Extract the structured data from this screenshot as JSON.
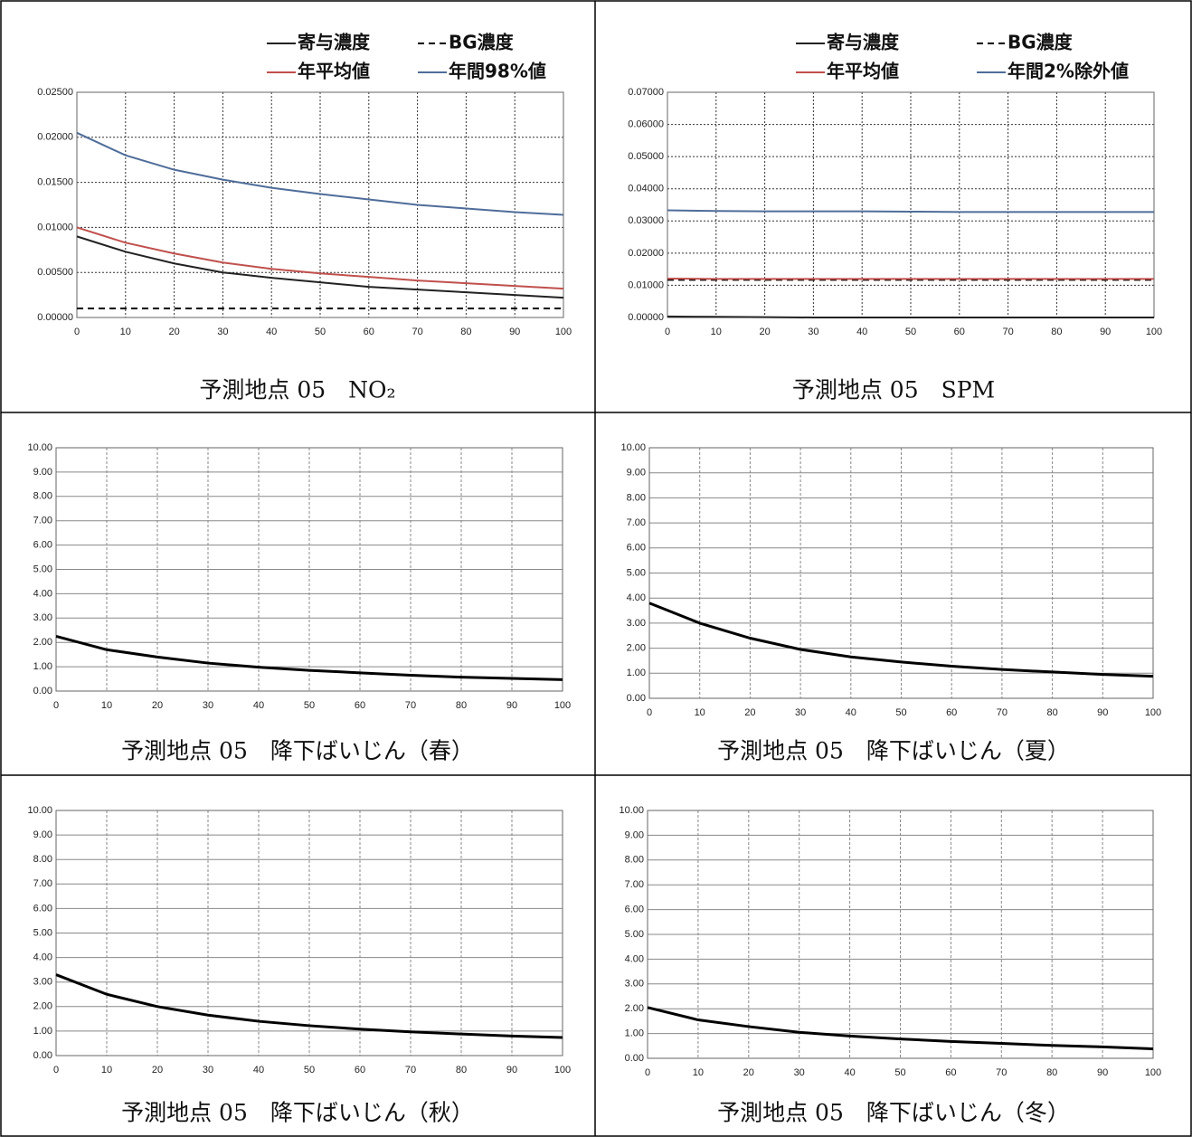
{
  "chart_data": [
    {
      "type": "line",
      "title": "予測地点 05　NO₂",
      "x": [
        0,
        10,
        20,
        30,
        40,
        50,
        60,
        70,
        80,
        90,
        100
      ],
      "xlim": [
        0,
        100
      ],
      "xticks": [
        0,
        10,
        20,
        30,
        40,
        50,
        60,
        70,
        80,
        90,
        100
      ],
      "ylim": [
        0,
        0.025
      ],
      "yticks": [
        {
          "value": 0,
          "label": "0.00000"
        },
        {
          "value": 0.005,
          "label": "0.00500"
        },
        {
          "value": 0.01,
          "label": "0.01000"
        },
        {
          "value": 0.015,
          "label": "0.01500"
        },
        {
          "value": 0.02,
          "label": "0.02000"
        },
        {
          "value": 0.025,
          "label": "0.02500"
        }
      ],
      "grid": true,
      "series": [
        {
          "name": "寄与濃度",
          "color": "#222222",
          "values": [
            0.009,
            0.0073,
            0.006,
            0.005,
            0.0044,
            0.0039,
            0.0034,
            0.0031,
            0.0028,
            0.0025,
            0.0022
          ]
        },
        {
          "name": "BG濃度",
          "color": "#000000",
          "dashed": true,
          "values": [
            0.001,
            0.001,
            0.001,
            0.001,
            0.001,
            0.001,
            0.001,
            0.001,
            0.001,
            0.001,
            0.001
          ]
        },
        {
          "name": "年平均値",
          "color": "#c0504d",
          "values": [
            0.01,
            0.0083,
            0.0071,
            0.0061,
            0.0054,
            0.0049,
            0.0045,
            0.0041,
            0.0038,
            0.0035,
            0.0032
          ]
        },
        {
          "name": "年間98%値",
          "color": "#4f6d9a",
          "values": [
            0.0205,
            0.018,
            0.0164,
            0.0153,
            0.0144,
            0.0137,
            0.0131,
            0.0125,
            0.0121,
            0.0117,
            0.0114
          ]
        }
      ]
    },
    {
      "type": "line",
      "title": "予測地点 05　SPM",
      "x": [
        0,
        10,
        20,
        30,
        40,
        50,
        60,
        70,
        80,
        90,
        100
      ],
      "xlim": [
        0,
        100
      ],
      "xticks": [
        0,
        10,
        20,
        30,
        40,
        50,
        60,
        70,
        80,
        90,
        100
      ],
      "ylim": [
        0,
        0.07
      ],
      "yticks": [
        {
          "value": 0,
          "label": "0.00000"
        },
        {
          "value": 0.01,
          "label": "0.01000"
        },
        {
          "value": 0.02,
          "label": "0.02000"
        },
        {
          "value": 0.03,
          "label": "0.03000"
        },
        {
          "value": 0.04,
          "label": "0.04000"
        },
        {
          "value": 0.05,
          "label": "0.05000"
        },
        {
          "value": 0.06,
          "label": "0.06000"
        },
        {
          "value": 0.07,
          "label": "0.07000"
        }
      ],
      "grid": true,
      "series": [
        {
          "name": "寄与濃度",
          "color": "#222222",
          "values": [
            0.0003,
            0.0002,
            0.0001,
            0,
            0,
            0,
            0,
            0,
            0,
            0,
            0
          ]
        },
        {
          "name": "BG濃度",
          "color": "#000000",
          "dashed": true,
          "values": [
            0.0117,
            0.0117,
            0.0117,
            0.0117,
            0.0117,
            0.0117,
            0.0117,
            0.0117,
            0.0117,
            0.0117,
            0.0117
          ]
        },
        {
          "name": "年平均値",
          "color": "#c0504d",
          "values": [
            0.0121,
            0.012,
            0.012,
            0.012,
            0.012,
            0.012,
            0.012,
            0.012,
            0.012,
            0.012,
            0.012
          ]
        },
        {
          "name": "年間2%除外値",
          "color": "#4f6d9a",
          "values": [
            0.0333,
            0.0331,
            0.033,
            0.033,
            0.033,
            0.0329,
            0.0328,
            0.0328,
            0.0328,
            0.0328,
            0.0328
          ]
        }
      ]
    },
    {
      "type": "line",
      "title": "予測地点 05　降下ばいじん（春）",
      "x": [
        0,
        10,
        20,
        30,
        40,
        50,
        60,
        70,
        80,
        90,
        100
      ],
      "xlim": [
        0,
        100
      ],
      "xticks": [
        0,
        10,
        20,
        30,
        40,
        50,
        60,
        70,
        80,
        90,
        100
      ],
      "ylim": [
        0,
        10
      ],
      "yticks": [
        {
          "value": 0,
          "label": "0.00"
        },
        {
          "value": 1,
          "label": "1.00"
        },
        {
          "value": 2,
          "label": "2.00"
        },
        {
          "value": 3,
          "label": "3.00"
        },
        {
          "value": 4,
          "label": "4.00"
        },
        {
          "value": 5,
          "label": "5.00"
        },
        {
          "value": 6,
          "label": "6.00"
        },
        {
          "value": 7,
          "label": "7.00"
        },
        {
          "value": 8,
          "label": "8.00"
        },
        {
          "value": 9,
          "label": "9.00"
        },
        {
          "value": 10,
          "label": "10.00"
        }
      ],
      "grid": true,
      "series": [
        {
          "color": "#000000",
          "values": [
            2.25,
            1.7,
            1.4,
            1.15,
            0.98,
            0.85,
            0.75,
            0.65,
            0.57,
            0.52,
            0.47
          ]
        }
      ]
    },
    {
      "type": "line",
      "title": "予測地点 05　降下ばいじん（夏）",
      "x": [
        0,
        10,
        20,
        30,
        40,
        50,
        60,
        70,
        80,
        90,
        100
      ],
      "xlim": [
        0,
        100
      ],
      "xticks": [
        0,
        10,
        20,
        30,
        40,
        50,
        60,
        70,
        80,
        90,
        100
      ],
      "ylim": [
        0,
        10
      ],
      "yticks": [
        {
          "value": 0,
          "label": "0.00"
        },
        {
          "value": 1,
          "label": "1.00"
        },
        {
          "value": 2,
          "label": "2.00"
        },
        {
          "value": 3,
          "label": "3.00"
        },
        {
          "value": 4,
          "label": "4.00"
        },
        {
          "value": 5,
          "label": "5.00"
        },
        {
          "value": 6,
          "label": "6.00"
        },
        {
          "value": 7,
          "label": "7.00"
        },
        {
          "value": 8,
          "label": "8.00"
        },
        {
          "value": 9,
          "label": "9.00"
        },
        {
          "value": 10,
          "label": "10.00"
        }
      ],
      "grid": true,
      "series": [
        {
          "color": "#000000",
          "values": [
            3.8,
            3.0,
            2.4,
            1.95,
            1.65,
            1.45,
            1.28,
            1.15,
            1.05,
            0.95,
            0.88
          ]
        }
      ]
    },
    {
      "type": "line",
      "title": "予測地点 05　降下ばいじん（秋）",
      "x": [
        0,
        10,
        20,
        30,
        40,
        50,
        60,
        70,
        80,
        90,
        100
      ],
      "xlim": [
        0,
        100
      ],
      "xticks": [
        0,
        10,
        20,
        30,
        40,
        50,
        60,
        70,
        80,
        90,
        100
      ],
      "ylim": [
        0,
        10
      ],
      "yticks": [
        {
          "value": 0,
          "label": "0.00"
        },
        {
          "value": 1,
          "label": "1.00"
        },
        {
          "value": 2,
          "label": "2.00"
        },
        {
          "value": 3,
          "label": "3.00"
        },
        {
          "value": 4,
          "label": "4.00"
        },
        {
          "value": 5,
          "label": "5.00"
        },
        {
          "value": 6,
          "label": "6.00"
        },
        {
          "value": 7,
          "label": "7.00"
        },
        {
          "value": 8,
          "label": "8.00"
        },
        {
          "value": 9,
          "label": "9.00"
        },
        {
          "value": 10,
          "label": "10.00"
        }
      ],
      "grid": true,
      "series": [
        {
          "color": "#000000",
          "values": [
            3.3,
            2.5,
            2.0,
            1.65,
            1.4,
            1.22,
            1.08,
            0.97,
            0.88,
            0.8,
            0.74
          ]
        }
      ]
    },
    {
      "type": "line",
      "title": "予測地点 05　降下ばいじん（冬）",
      "x": [
        0,
        10,
        20,
        30,
        40,
        50,
        60,
        70,
        80,
        90,
        100
      ],
      "xlim": [
        0,
        100
      ],
      "xticks": [
        0,
        10,
        20,
        30,
        40,
        50,
        60,
        70,
        80,
        90,
        100
      ],
      "ylim": [
        0,
        10
      ],
      "yticks": [
        {
          "value": 0,
          "label": "0.00"
        },
        {
          "value": 1,
          "label": "1.00"
        },
        {
          "value": 2,
          "label": "2.00"
        },
        {
          "value": 3,
          "label": "3.00"
        },
        {
          "value": 4,
          "label": "4.00"
        },
        {
          "value": 5,
          "label": "5.00"
        },
        {
          "value": 6,
          "label": "6.00"
        },
        {
          "value": 7,
          "label": "7.00"
        },
        {
          "value": 8,
          "label": "8.00"
        },
        {
          "value": 9,
          "label": "9.00"
        },
        {
          "value": 10,
          "label": "10.00"
        }
      ],
      "grid": true,
      "series": [
        {
          "color": "#000000",
          "values": [
            2.05,
            1.55,
            1.28,
            1.05,
            0.9,
            0.78,
            0.68,
            0.6,
            0.52,
            0.46,
            0.38
          ]
        }
      ]
    }
  ]
}
